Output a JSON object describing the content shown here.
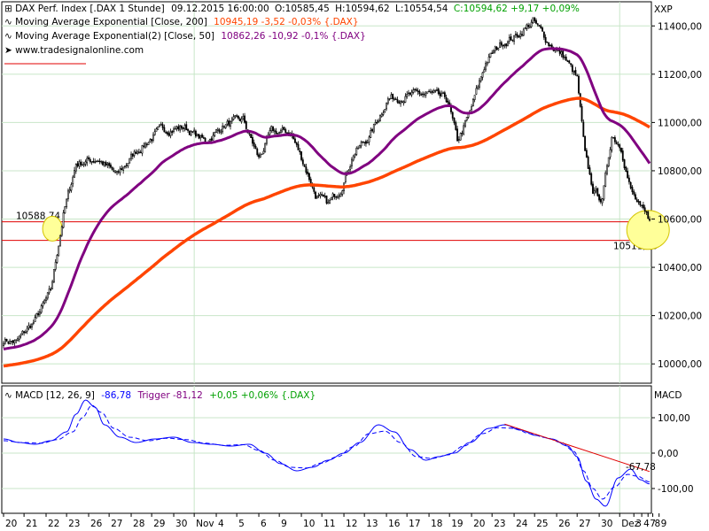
{
  "chart_data": [
    {
      "type": "candlestick",
      "panel": "price",
      "title": "DAX Perf. Index [.DAX  1 Stunde]",
      "header": {
        "timestamp": "09.12.2015 16:00:00",
        "open": "O:10585,45",
        "high": "H:10594,62",
        "low": "L:10554,54",
        "close": "C:10594,62 +9,17 +0,09%"
      },
      "source": "www.tradesignalonline.com",
      "indicators": [
        {
          "label": "Moving Average Exponential [Close, 200]",
          "values": "10945,19 -3,52 -0,03% {.DAX}",
          "color": "#ff4500"
        },
        {
          "label": "Moving Average Exponential(2) [Close, 50]",
          "values": "10862,26 -10,92 -0,1% {.DAX}",
          "color": "#800080"
        }
      ],
      "y_axis_title": "XXP",
      "yticks": [
        "11400,00",
        "11200,00",
        "11000,00",
        "10800,00",
        "10600,00",
        "10400,00",
        "10200,00",
        "10000,00"
      ],
      "ytick_values": [
        11400,
        11200,
        11000,
        10800,
        10600,
        10400,
        10200,
        10000
      ],
      "ylim": [
        9920,
        11500
      ],
      "grid": true,
      "horizontal_levels": [
        {
          "label": "10588,74",
          "value": 10588.74,
          "color": "#e00000"
        },
        {
          "label": "10511,66",
          "value": 10511.66,
          "color": "#e00000"
        }
      ],
      "highlights": [
        {
          "index": 31,
          "value": 10560
        },
        {
          "index": 409,
          "value": 10555
        }
      ],
      "trend_levels": [
        {
          "index": 0,
          "value": 10100
        },
        {
          "index": 8,
          "value": 10090
        },
        {
          "index": 20,
          "value": 10180
        },
        {
          "index": 30,
          "value": 10300
        },
        {
          "index": 38,
          "value": 10620
        },
        {
          "index": 46,
          "value": 10830
        },
        {
          "index": 60,
          "value": 10850
        },
        {
          "index": 72,
          "value": 10780
        },
        {
          "index": 84,
          "value": 10880
        },
        {
          "index": 100,
          "value": 10970
        },
        {
          "index": 115,
          "value": 10980
        },
        {
          "index": 128,
          "value": 10920
        },
        {
          "index": 140,
          "value": 10990
        },
        {
          "index": 152,
          "value": 11010
        },
        {
          "index": 162,
          "value": 10850
        },
        {
          "index": 170,
          "value": 10960
        },
        {
          "index": 182,
          "value": 10960
        },
        {
          "index": 190,
          "value": 10840
        },
        {
          "index": 198,
          "value": 10700
        },
        {
          "index": 206,
          "value": 10660
        },
        {
          "index": 214,
          "value": 10730
        },
        {
          "index": 222,
          "value": 10870
        },
        {
          "index": 232,
          "value": 10940
        },
        {
          "index": 244,
          "value": 11100
        },
        {
          "index": 270,
          "value": 11120
        },
        {
          "index": 282,
          "value": 11090
        },
        {
          "index": 288,
          "value": 10920
        },
        {
          "index": 296,
          "value": 11040
        },
        {
          "index": 306,
          "value": 11250
        },
        {
          "index": 316,
          "value": 11330
        },
        {
          "index": 326,
          "value": 11360
        },
        {
          "index": 336,
          "value": 11420
        },
        {
          "index": 346,
          "value": 11330
        },
        {
          "index": 356,
          "value": 11270
        },
        {
          "index": 364,
          "value": 11180
        },
        {
          "index": 369,
          "value": 10860
        },
        {
          "index": 374,
          "value": 10720
        },
        {
          "index": 380,
          "value": 10680
        },
        {
          "index": 386,
          "value": 10950
        },
        {
          "index": 392,
          "value": 10900
        },
        {
          "index": 398,
          "value": 10720
        },
        {
          "index": 404,
          "value": 10640
        },
        {
          "index": 410,
          "value": 10594
        }
      ]
    },
    {
      "type": "line",
      "panel": "macd",
      "title": "MACD [12, 26, 9]",
      "values_label": "-86,78",
      "trigger_label": "Trigger -81,12",
      "change_label": "+0,05 +0,06% {.DAX}",
      "y_axis_title": "MACD",
      "yticks": [
        "100,00",
        "0,00",
        "-100,00"
      ],
      "ytick_values": [
        100,
        0,
        -100
      ],
      "ylim": [
        -170,
        190
      ],
      "series": [
        {
          "name": "MACD",
          "color": "#0000ff",
          "dash": false,
          "points": [
            [
              0,
              40
            ],
            [
              10,
              30
            ],
            [
              20,
              25
            ],
            [
              30,
              35
            ],
            [
              40,
              60
            ],
            [
              46,
              110
            ],
            [
              52,
              150
            ],
            [
              58,
              130
            ],
            [
              64,
              80
            ],
            [
              74,
              45
            ],
            [
              84,
              30
            ],
            [
              96,
              40
            ],
            [
              108,
              45
            ],
            [
              120,
              30
            ],
            [
              132,
              25
            ],
            [
              144,
              20
            ],
            [
              156,
              25
            ],
            [
              166,
              0
            ],
            [
              176,
              -30
            ],
            [
              186,
              -50
            ],
            [
              196,
              -40
            ],
            [
              206,
              -20
            ],
            [
              216,
              0
            ],
            [
              226,
              30
            ],
            [
              238,
              80
            ],
            [
              248,
              60
            ],
            [
              258,
              10
            ],
            [
              268,
              -20
            ],
            [
              276,
              -10
            ],
            [
              286,
              0
            ],
            [
              296,
              30
            ],
            [
              308,
              70
            ],
            [
              318,
              80
            ],
            [
              328,
              65
            ],
            [
              338,
              50
            ],
            [
              348,
              40
            ],
            [
              358,
              20
            ],
            [
              364,
              -10
            ],
            [
              370,
              -80
            ],
            [
              376,
              -130
            ],
            [
              382,
              -150
            ],
            [
              390,
              -70
            ],
            [
              398,
              -45
            ],
            [
              404,
              -75
            ],
            [
              410,
              -87
            ]
          ]
        },
        {
          "name": "Trigger",
          "color": "#0000ff",
          "dash": true,
          "points": [
            [
              0,
              35
            ],
            [
              12,
              30
            ],
            [
              24,
              28
            ],
            [
              34,
              38
            ],
            [
              44,
              60
            ],
            [
              50,
              100
            ],
            [
              56,
              135
            ],
            [
              62,
              115
            ],
            [
              70,
              70
            ],
            [
              80,
              45
            ],
            [
              92,
              35
            ],
            [
              104,
              42
            ],
            [
              116,
              38
            ],
            [
              128,
              28
            ],
            [
              140,
              22
            ],
            [
              152,
              24
            ],
            [
              162,
              8
            ],
            [
              172,
              -20
            ],
            [
              182,
              -40
            ],
            [
              192,
              -42
            ],
            [
              202,
              -28
            ],
            [
              212,
              -10
            ],
            [
              222,
              18
            ],
            [
              232,
              55
            ],
            [
              242,
              62
            ],
            [
              252,
              30
            ],
            [
              262,
              -10
            ],
            [
              272,
              -15
            ],
            [
              282,
              -5
            ],
            [
              292,
              20
            ],
            [
              304,
              55
            ],
            [
              314,
              72
            ],
            [
              324,
              70
            ],
            [
              334,
              55
            ],
            [
              344,
              44
            ],
            [
              354,
              30
            ],
            [
              362,
              5
            ],
            [
              368,
              -50
            ],
            [
              374,
              -100
            ],
            [
              380,
              -130
            ],
            [
              388,
              -95
            ],
            [
              396,
              -60
            ],
            [
              402,
              -65
            ],
            [
              410,
              -81
            ]
          ]
        }
      ],
      "trendline": {
        "color": "#e00000",
        "from": [
          318,
          82
        ],
        "to": [
          410,
          -52
        ]
      },
      "trendline_label": "-67,78"
    }
  ],
  "x_axis": {
    "labels": [
      "20",
      "21",
      "22",
      "23",
      "26",
      "27",
      "28",
      "29",
      "30",
      "Nov",
      "4",
      "5",
      "6",
      "9",
      "10",
      "11",
      "12",
      "13",
      "16",
      "17",
      "18",
      "19",
      "20",
      "23",
      "24",
      "25",
      "26",
      "27",
      "30",
      "Dez",
      "3",
      "4",
      "7",
      "8",
      "9"
    ],
    "label_index": [
      0,
      13,
      27,
      40,
      54,
      67,
      81,
      94,
      108,
      121,
      135,
      148,
      162,
      175,
      189,
      202,
      216,
      229,
      243,
      256,
      270,
      283,
      297,
      310,
      324,
      337,
      351,
      364,
      378,
      391,
      400,
      405,
      409,
      412,
      416
    ],
    "vertical_lines_at_label": [
      "Nov",
      "Dez"
    ],
    "n_bars": 411
  }
}
